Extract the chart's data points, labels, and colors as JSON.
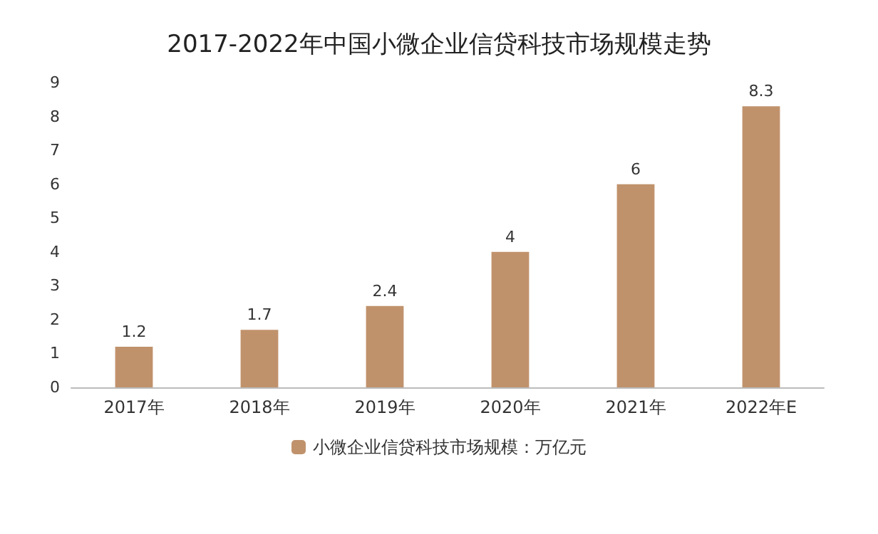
{
  "chart_data": {
    "type": "bar",
    "title": "2017-2022年中国小微企业信贷科技市场规模走势",
    "categories": [
      "2017年",
      "2018年",
      "2019年",
      "2020年",
      "2021年",
      "2022年E"
    ],
    "series": [
      {
        "name": "小微企业信贷科技市场规模：万亿元",
        "color": "#c0926c",
        "values": [
          1.2,
          1.7,
          2.4,
          4,
          6,
          8.3
        ]
      }
    ],
    "ylim": [
      0,
      9
    ],
    "yticks": [
      0,
      1,
      2,
      3,
      4,
      5,
      6,
      7,
      8,
      9
    ],
    "grid": false,
    "legend": "bottom",
    "data_labels": true
  }
}
